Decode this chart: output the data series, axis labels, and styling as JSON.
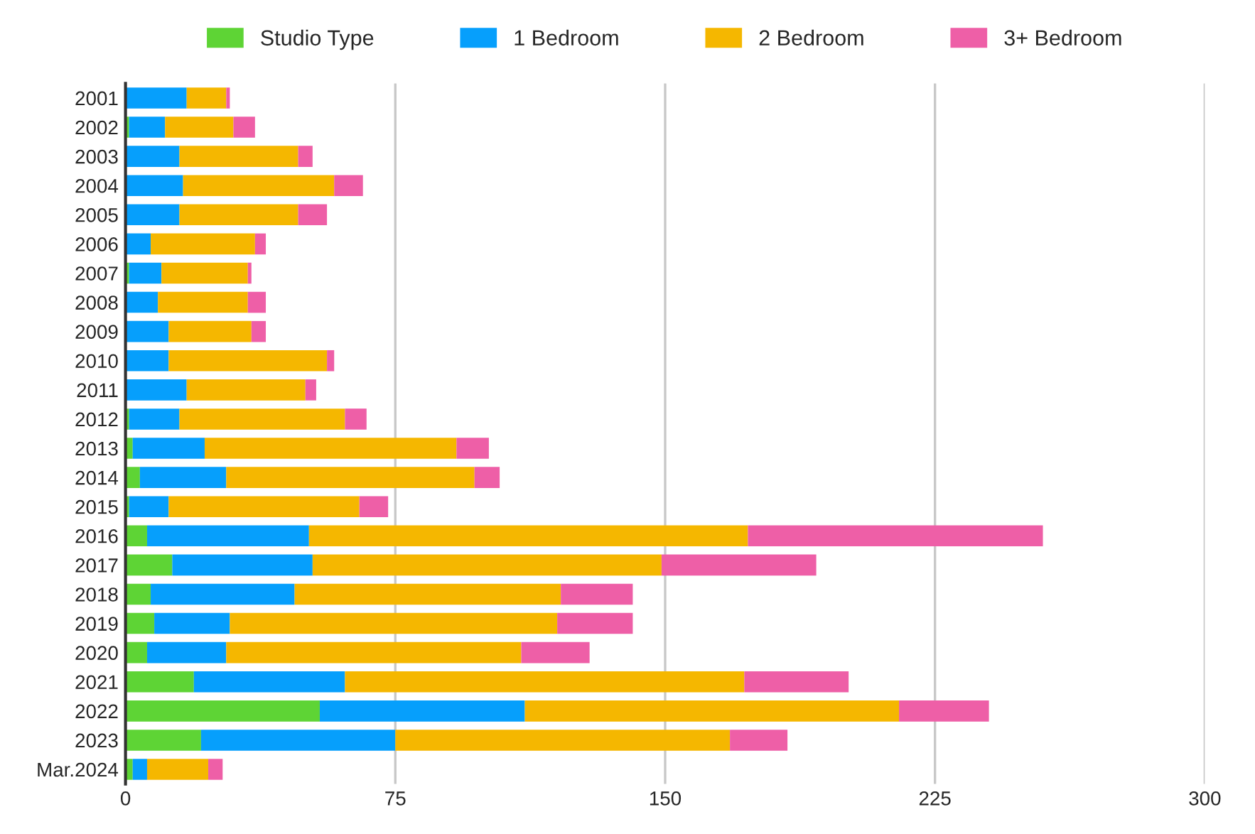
{
  "chart_data": {
    "type": "bar",
    "orientation": "horizontal",
    "stacked": true,
    "categories": [
      "2001",
      "2002",
      "2003",
      "2004",
      "2005",
      "2006",
      "2007",
      "2008",
      "2009",
      "2010",
      "2011",
      "2012",
      "2013",
      "2014",
      "2015",
      "2016",
      "2017",
      "2018",
      "2019",
      "2020",
      "2021",
      "2022",
      "2023",
      "Mar.2024"
    ],
    "series": [
      {
        "name": "Studio Type",
        "color": "#5ed435",
        "values": [
          0,
          1,
          0,
          0,
          0,
          0,
          1,
          0,
          0,
          0,
          0,
          1,
          2,
          4,
          1,
          6,
          13,
          7,
          8,
          6,
          19,
          54,
          21,
          2
        ]
      },
      {
        "name": "1 Bedroom",
        "color": "#069ffc",
        "values": [
          17,
          10,
          15,
          16,
          15,
          7,
          9,
          9,
          12,
          12,
          17,
          14,
          20,
          24,
          11,
          45,
          39,
          40,
          21,
          22,
          42,
          57,
          54,
          4
        ]
      },
      {
        "name": "2 Bedroom",
        "color": "#f5b700",
        "values": [
          11,
          19,
          33,
          42,
          33,
          29,
          24,
          25,
          23,
          44,
          33,
          46,
          70,
          69,
          53,
          122,
          97,
          74,
          91,
          82,
          111,
          104,
          93,
          17
        ]
      },
      {
        "name": "3+ Bedroom",
        "color": "#ee5fa7",
        "values": [
          1,
          6,
          4,
          8,
          8,
          3,
          1,
          5,
          4,
          2,
          3,
          6,
          9,
          7,
          8,
          82,
          43,
          20,
          21,
          19,
          29,
          25,
          16,
          4
        ]
      }
    ],
    "xlim": [
      0,
      300
    ],
    "xticks": [
      0,
      75,
      150,
      225,
      300
    ],
    "grid": "x",
    "legend": "top"
  }
}
